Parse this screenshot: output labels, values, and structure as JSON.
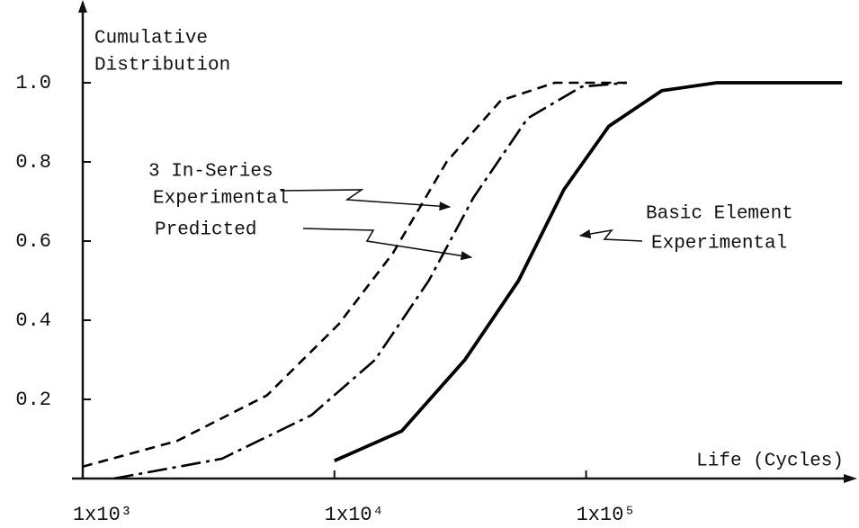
{
  "chart_data": {
    "type": "line",
    "y_label": [
      "Cumulative",
      "Distribution"
    ],
    "x_label": "Life (Cycles)",
    "xscale": "log",
    "xlim": [
      1000,
      1100000
    ],
    "ylim": [
      0,
      1.2
    ],
    "xticks": [
      {
        "value": 1000,
        "label": "1x10³"
      },
      {
        "value": 10000,
        "label": "1x10⁴"
      },
      {
        "value": 100000,
        "label": "1x10⁵"
      }
    ],
    "yticks": [
      0.2,
      0.4,
      0.6,
      0.8,
      {
        "value": 1,
        "label": "1.0"
      }
    ],
    "grid": false,
    "annotations": [
      "3 In-Series",
      "Basic Element"
    ],
    "series": [
      {
        "name": "Experimental",
        "color": "#000000",
        "style": "dashed",
        "x": [
          1000,
          2371,
          5390,
          10400,
          17100,
          27900,
          45800,
          75000,
          145000
        ],
        "values": [
          0.03,
          0.095,
          0.21,
          0.39,
          0.57,
          0.8,
          0.955,
          1.0,
          1.0
        ]
      },
      {
        "name": "Predicted",
        "color": "#000000",
        "style": "dashdot",
        "x": [
          1330,
          3570,
          8100,
          14500,
          23700,
          35700,
          58500,
          95900,
          145000
        ],
        "values": [
          0,
          0.05,
          0.16,
          0.3,
          0.5,
          0.71,
          0.91,
          0.99,
          1.0
        ]
      },
      {
        "name": "Experimental",
        "color": "#000000",
        "style": "solid",
        "x": [
          10000,
          18500,
          33000,
          53900,
          81600,
          123000,
          200000,
          330000,
          1040000
        ],
        "values": [
          0.045,
          0.12,
          0.3,
          0.5,
          0.73,
          0.89,
          0.98,
          1.0,
          1.0
        ]
      }
    ]
  }
}
